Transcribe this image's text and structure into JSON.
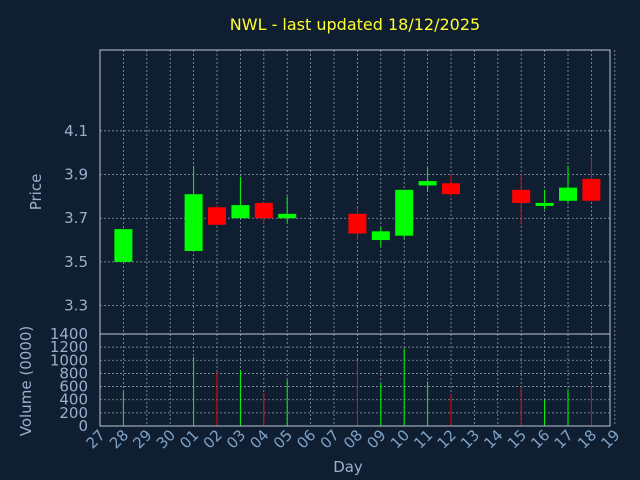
{
  "title": "NWL - last updated 18/12/2025",
  "colors": {
    "background": "#0f1e30",
    "up": "#00ff00",
    "down": "#ff0000",
    "title": "#ffff33",
    "text": "#9ab0cc",
    "grid": "#8a9cb0"
  },
  "chart_data": {
    "type": "candlestick",
    "title": "NWL - last updated 18/12/2025",
    "xlabel": "Day",
    "ylabel": "Price",
    "volume_label": "Volume (0000)",
    "x_ticks": [
      "27",
      "28",
      "29",
      "30",
      "01",
      "02",
      "03",
      "04",
      "05",
      "06",
      "07",
      "08",
      "09",
      "10",
      "11",
      "12",
      "13",
      "14",
      "15",
      "16",
      "17",
      "18",
      "19"
    ],
    "y_ticks": [
      "3.3",
      "3.5",
      "3.7",
      "3.9",
      "4.1"
    ],
    "ylim": [
      3.17,
      4.47
    ],
    "volume_ticks": [
      "0",
      "200",
      "400",
      "600",
      "800",
      "1000",
      "1200",
      "1400"
    ],
    "volume_ylim": [
      0,
      1400
    ],
    "grid": true,
    "candles": [
      {
        "day": "28",
        "open": 3.5,
        "high": 3.65,
        "low": 3.5,
        "close": 3.65,
        "volume": 520
      },
      {
        "day": "01",
        "open": 3.55,
        "high": 3.94,
        "low": 3.55,
        "close": 3.81,
        "volume": 1050
      },
      {
        "day": "02",
        "open": 3.75,
        "high": 3.76,
        "low": 3.67,
        "close": 3.67,
        "volume": 820
      },
      {
        "day": "03",
        "open": 3.7,
        "high": 3.89,
        "low": 3.7,
        "close": 3.76,
        "volume": 850
      },
      {
        "day": "04",
        "open": 3.77,
        "high": 3.77,
        "low": 3.68,
        "close": 3.7,
        "volume": 500
      },
      {
        "day": "05",
        "open": 3.7,
        "high": 3.8,
        "low": 3.68,
        "close": 3.72,
        "volume": 700
      },
      {
        "day": "08",
        "open": 3.72,
        "high": 3.75,
        "low": 3.6,
        "close": 3.63,
        "volume": 1000
      },
      {
        "day": "09",
        "open": 3.6,
        "high": 3.66,
        "low": 3.57,
        "close": 3.64,
        "volume": 650
      },
      {
        "day": "10",
        "open": 3.62,
        "high": 3.83,
        "low": 3.61,
        "close": 3.83,
        "volume": 1180
      },
      {
        "day": "11",
        "open": 3.85,
        "high": 3.93,
        "low": 3.82,
        "close": 3.87,
        "volume": 680
      },
      {
        "day": "12",
        "open": 3.86,
        "high": 3.9,
        "low": 3.8,
        "close": 3.81,
        "volume": 480
      },
      {
        "day": "15",
        "open": 3.83,
        "high": 3.9,
        "low": 3.67,
        "close": 3.77,
        "volume": 600
      },
      {
        "day": "16",
        "open": 3.76,
        "high": 3.83,
        "low": 3.74,
        "close": 3.77,
        "volume": 400
      },
      {
        "day": "17",
        "open": 3.78,
        "high": 3.94,
        "low": 3.77,
        "close": 3.84,
        "volume": 560
      },
      {
        "day": "18",
        "open": 3.88,
        "high": 3.98,
        "low": 3.78,
        "close": 3.78,
        "volume": 620
      }
    ]
  }
}
